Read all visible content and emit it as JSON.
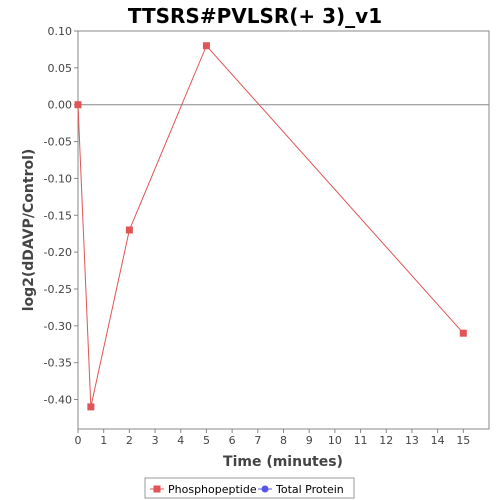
{
  "chart_data": {
    "type": "line",
    "title": "TTSRS#PVLSR(+ 3)_v1",
    "xlabel": "Time (minutes)",
    "ylabel": "log2(dDAVP/Control)",
    "xlim": [
      0,
      16
    ],
    "ylim": [
      -0.44,
      0.1
    ],
    "xticks": [
      0,
      1,
      2,
      3,
      4,
      5,
      6,
      7,
      8,
      9,
      10,
      11,
      12,
      13,
      14,
      15
    ],
    "yticks": [
      0.1,
      0.05,
      0.0,
      -0.05,
      -0.1,
      -0.15,
      -0.2,
      -0.25,
      -0.3,
      -0.35,
      -0.4
    ],
    "ytick_labels": [
      "0.10",
      "0.05",
      "0.00",
      "-0.05",
      "-0.10",
      "-0.15",
      "-0.20",
      "-0.25",
      "-0.30",
      "-0.35",
      "-0.40"
    ],
    "grid": false,
    "zero_line": true,
    "legend_position": "bottom",
    "series": [
      {
        "name": "Phosphopeptide",
        "color": "#e05555",
        "marker": "square",
        "x": [
          0,
          0.5,
          2,
          5,
          15
        ],
        "y": [
          0.0,
          -0.41,
          -0.17,
          0.08,
          -0.31
        ]
      },
      {
        "name": "Total Protein",
        "color": "#5555ee",
        "marker": "circle",
        "x": [],
        "y": []
      }
    ]
  }
}
